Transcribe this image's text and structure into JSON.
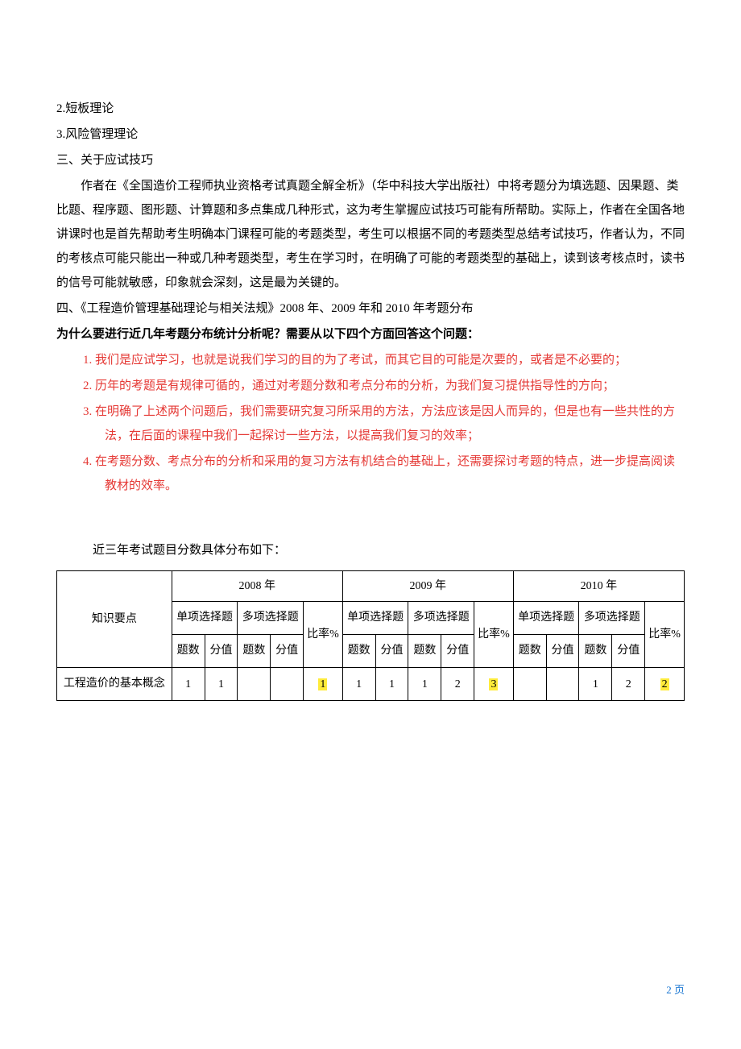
{
  "body": {
    "line1": "2.短板理论",
    "line2": "3.风险管理理论",
    "line3": "三、关于应试技巧",
    "para1": "作者在《全国造价工程师执业资格考试真题全解全析》（华中科技大学出版社）中将考题分为填选题、因果题、类比题、程序题、图形题、计算题和多点集成几种形式，这为考生掌握应试技巧可能有所帮助。实际上，作者在全国各地讲课时也是首先帮助考生明确本门课程可能的考题类型，考生可以根据不同的考题类型总结考试技巧，作者认为，不同的考核点可能只能出一种或几种考题类型，考生在学习时，在明确了可能的考题类型的基础上，读到该考核点时，读书的信号可能就敏感，印象就会深刻，这是最为关键的。",
    "line4": "四、《工程造价管理基础理论与相关法规》2008 年、2009 年和 2010 年考题分布",
    "question": "为什么要进行近几年考题分布统计分析呢？需要从以下四个方面回答这个问题：",
    "items": [
      "1.  我们是应试学习，也就是说我们学习的目的为了考试，而其它目的可能是次要的，或者是不必要的；",
      "2.  历年的考题是有规律可循的，通过对考题分数和考点分布的分析，为我们复习提供指导性的方向；",
      "3.  在明确了上述两个问题后，我们需要研究复习所采用的方法，方法应该是因人而异的，但是也有一些共性的方法，在后面的课程中我们一起探讨一些方法，以提高我们复习的效率；",
      "4.  在考题分数、考点分布的分析和采用的复习方法有机结合的基础上，还需要探讨考题的特点，进一步提高阅读教材的效率。"
    ],
    "tableIntro": "近三年考试题目分数具体分布如下："
  },
  "table": {
    "headers": {
      "col1": "知识要点",
      "year1": "2008 年",
      "year2": "2009 年",
      "year3": "2010 年",
      "single": "单项选择题",
      "multi": "多项选择题",
      "rate": "比率%",
      "count": "题数",
      "score": "分值"
    },
    "row1": {
      "label": "工程造价的基本概念",
      "y2008_s_count": "1",
      "y2008_s_score": "1",
      "y2008_m_count": "",
      "y2008_m_score": "",
      "y2008_rate": "1",
      "y2009_s_count": "1",
      "y2009_s_score": "1",
      "y2009_m_count": "1",
      "y2009_m_score": "2",
      "y2009_rate": "3",
      "y2010_s_count": "",
      "y2010_s_score": "",
      "y2010_m_count": "1",
      "y2010_m_score": "2",
      "y2010_rate": "2"
    }
  },
  "footer": {
    "pageLabel": "2 页"
  },
  "colors": {
    "text": "#000000",
    "red": "#e53935",
    "highlight": "#ffeb3b",
    "footer": "#1976d2",
    "border": "#000000",
    "background": "#ffffff"
  }
}
